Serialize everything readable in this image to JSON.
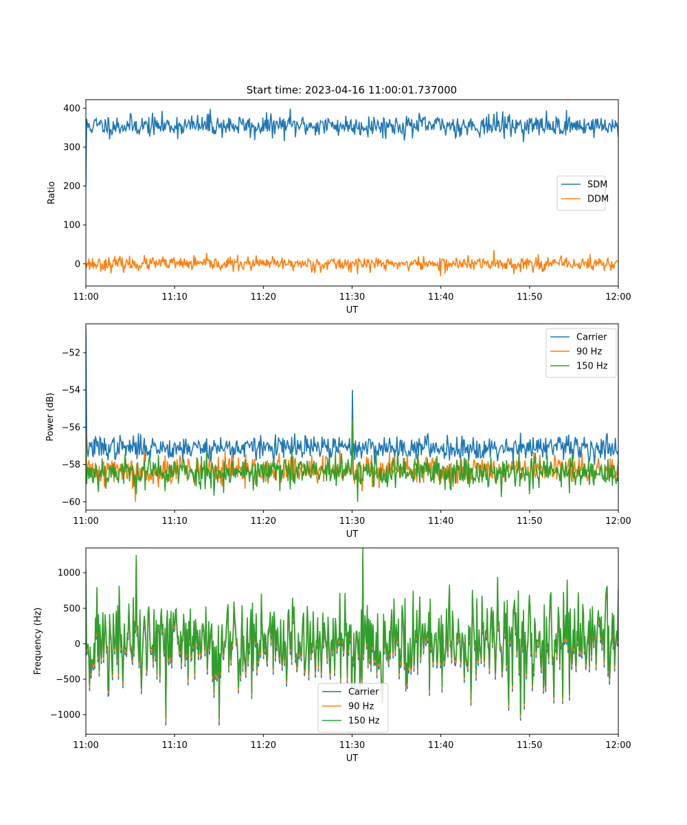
{
  "figure": {
    "title": "Start time: 2023-04-16 11:00:01.737000"
  },
  "colors": {
    "blue": "#1f77b4",
    "orange": "#ff7f0e",
    "green": "#2ca02c"
  },
  "chart_data": [
    {
      "type": "line",
      "title": "Start time: 2023-04-16 11:00:01.737000",
      "xlabel": "UT",
      "ylabel": "Ratio",
      "xlim": [
        "11:00",
        "12:00"
      ],
      "ylim": [
        -57,
        422
      ],
      "xticks": [
        "11:00",
        "11:10",
        "11:20",
        "11:30",
        "11:40",
        "11:50",
        "12:00"
      ],
      "yticks": [
        0,
        100,
        200,
        300,
        400
      ],
      "legend": "center-right",
      "grid": false,
      "series": [
        {
          "name": "SDM",
          "color": "#1f77b4",
          "mean": 355,
          "noise": 14,
          "first": 200,
          "seed": 11,
          "spikes": [
            {
              "x": "11:14",
              "y": 398
            },
            {
              "x": "11:23",
              "y": 399
            },
            {
              "x": "11:19",
              "y": 318
            },
            {
              "x": "11:47",
              "y": 392
            }
          ]
        },
        {
          "name": "DDM",
          "color": "#ff7f0e",
          "mean": 0,
          "noise": 9,
          "first": 0,
          "seed": 23,
          "spikes": [
            {
              "x": "11:46",
              "y": 35
            },
            {
              "x": "11:40",
              "y": -32
            },
            {
              "x": "11:51",
              "y": 25
            }
          ]
        }
      ]
    },
    {
      "type": "line",
      "title": "",
      "xlabel": "UT",
      "ylabel": "Power (dB)",
      "xlim": [
        "11:00",
        "12:00"
      ],
      "ylim": [
        -60.45,
        -50.45
      ],
      "xticks": [
        "11:00",
        "11:10",
        "11:20",
        "11:30",
        "11:40",
        "11:50",
        "12:00"
      ],
      "yticks": [
        -52,
        -54,
        -56,
        -58,
        -60
      ],
      "legend": "top-right",
      "grid": false,
      "series": [
        {
          "name": "Carrier",
          "color": "#1f77b4",
          "mean": -57.1,
          "noise": 0.32,
          "first": -50.7,
          "seed": 37,
          "spikes": [
            {
              "x": "11:30",
              "y": -54.0
            },
            {
              "x": "11:49",
              "y": -56.3
            }
          ]
        },
        {
          "name": "90 Hz",
          "color": "#ff7f0e",
          "mean": -58.3,
          "noise": 0.4,
          "first": -56.2,
          "seed": 41,
          "spikes": [
            {
              "x": "11:05.6",
              "y": -60.0
            },
            {
              "x": "11:30",
              "y": -55.6
            }
          ]
        },
        {
          "name": "150 Hz",
          "color": "#2ca02c",
          "mean": -58.4,
          "noise": 0.45,
          "first": -57.0,
          "seed": 53,
          "spikes": [
            {
              "x": "11:30.6",
              "y": -60.0
            },
            {
              "x": "11:30",
              "y": -55.6
            }
          ]
        }
      ]
    },
    {
      "type": "line",
      "title": "",
      "xlabel": "UT",
      "ylabel": "Frequency (Hz)",
      "xlim": [
        "11:00",
        "12:00"
      ],
      "ylim": [
        -1275,
        1350
      ],
      "xticks": [
        "11:00",
        "11:10",
        "11:20",
        "11:30",
        "11:40",
        "11:50",
        "12:00"
      ],
      "yticks": [
        -1000,
        -500,
        0,
        500,
        1000
      ],
      "legend": "lower-center",
      "grid": false,
      "series": [
        {
          "name": "Carrier",
          "color": "#1f77b4",
          "mean": -40,
          "noise": 330,
          "first": 450,
          "seed": 71,
          "spikes": [
            {
              "x": "11:09",
              "y": -1150
            },
            {
              "x": "11:15",
              "y": -1150
            },
            {
              "x": "11:05.7",
              "y": 1150
            },
            {
              "x": "11:31.2",
              "y": 1250
            }
          ]
        },
        {
          "name": "90 Hz",
          "color": "#ff7f0e",
          "mean": 0,
          "noise": 330,
          "first": 500,
          "seed": 71,
          "spikes": [
            {
              "x": "11:09",
              "y": -1100
            },
            {
              "x": "11:15",
              "y": -1100
            },
            {
              "x": "11:05.7",
              "y": 1200
            },
            {
              "x": "11:31.2",
              "y": 1300
            }
          ]
        },
        {
          "name": "150 Hz",
          "color": "#2ca02c",
          "mean": 40,
          "noise": 330,
          "first": 1050,
          "seed": 71,
          "spikes": [
            {
              "x": "11:09",
              "y": -1050
            },
            {
              "x": "11:15",
              "y": -1050
            },
            {
              "x": "11:05.7",
              "y": 1250
            },
            {
              "x": "11:31.2",
              "y": 1350
            }
          ]
        }
      ]
    }
  ]
}
